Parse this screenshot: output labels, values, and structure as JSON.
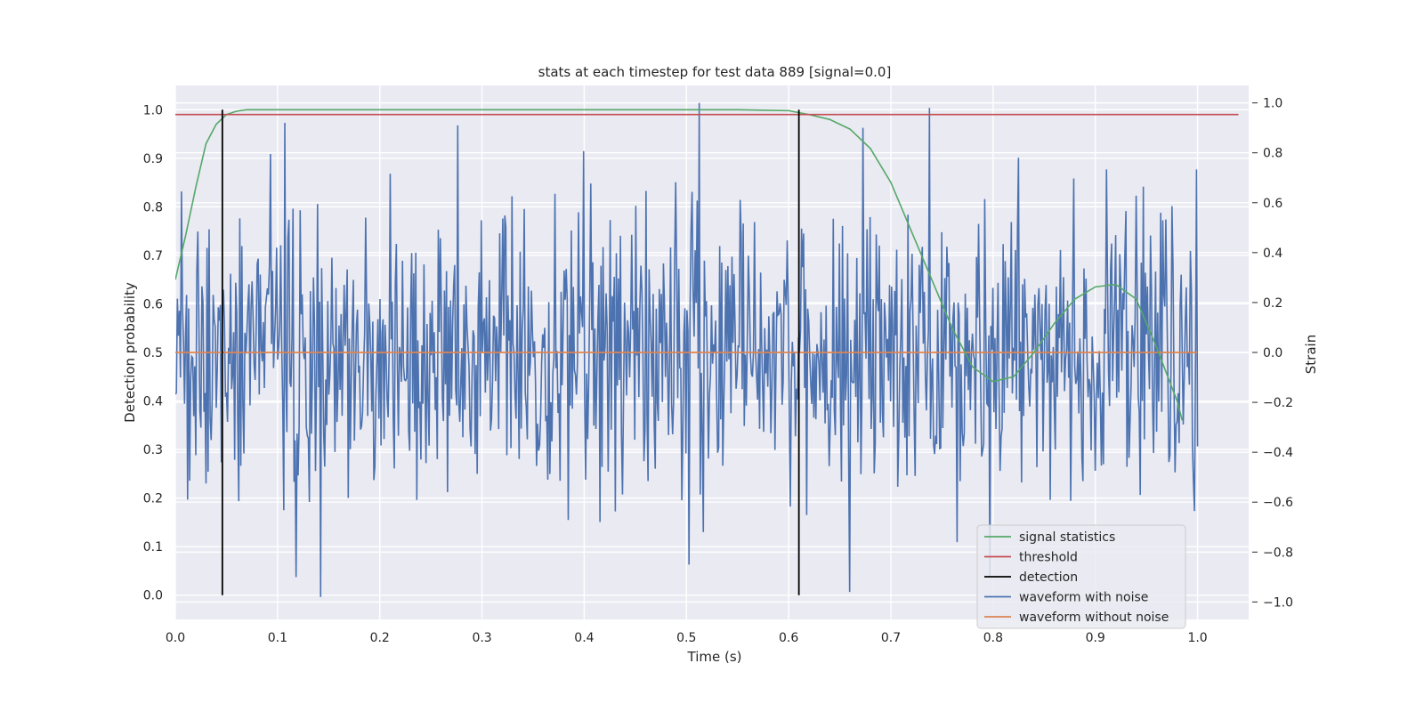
{
  "chart_data": {
    "type": "line",
    "title": "stats at each timestep for test data 889 [signal=0.0]",
    "xlabel": "Time (s)",
    "ylabel": "Detection probability",
    "y2label": "Strain",
    "xlim": [
      0.0,
      1.05
    ],
    "ylim": [
      -0.05,
      1.05
    ],
    "y2lim": [
      -1.07,
      1.07
    ],
    "grid": true,
    "legend_position": "lower-right",
    "x_ticks": [
      "0.0",
      "0.1",
      "0.2",
      "0.3",
      "0.4",
      "0.5",
      "0.6",
      "0.7",
      "0.8",
      "0.9",
      "1.0"
    ],
    "y_ticks": [
      "0.0",
      "0.1",
      "0.2",
      "0.3",
      "0.4",
      "0.5",
      "0.6",
      "0.7",
      "0.8",
      "0.9",
      "1.0"
    ],
    "y2_ticks": [
      "−1.0",
      "−0.8",
      "−0.6",
      "−0.4",
      "−0.2",
      "0.0",
      "0.2",
      "0.4",
      "0.6",
      "0.8",
      "1.0"
    ],
    "series": [
      {
        "name": "signal statistics",
        "axis": "left",
        "color": "#55a868",
        "x": [
          0.0,
          0.01,
          0.02,
          0.03,
          0.04,
          0.05,
          0.06,
          0.07,
          0.1,
          0.2,
          0.3,
          0.4,
          0.5,
          0.55,
          0.6,
          0.62,
          0.64,
          0.66,
          0.68,
          0.7,
          0.72,
          0.74,
          0.76,
          0.78,
          0.8,
          0.82,
          0.84,
          0.86,
          0.88,
          0.9,
          0.92,
          0.94,
          0.96,
          0.98,
          0.985
        ],
        "y": [
          0.65,
          0.74,
          0.84,
          0.93,
          0.97,
          0.99,
          0.997,
          1.0,
          1.0,
          1.0,
          1.0,
          1.0,
          1.0,
          1.0,
          0.998,
          0.99,
          0.98,
          0.96,
          0.92,
          0.85,
          0.75,
          0.65,
          0.55,
          0.47,
          0.44,
          0.45,
          0.5,
          0.56,
          0.61,
          0.635,
          0.64,
          0.61,
          0.51,
          0.4,
          0.36
        ]
      },
      {
        "name": "threshold",
        "axis": "left",
        "color": "#c44e52",
        "x": [
          0.0,
          1.04
        ],
        "y": [
          0.99,
          0.99
        ]
      },
      {
        "name": "detection",
        "axis": "left",
        "color": "#000000",
        "type": "vlines",
        "x": [
          0.046,
          0.61
        ],
        "y_range": [
          0.0,
          1.0
        ]
      },
      {
        "name": "waveform with noise",
        "axis": "right",
        "color": "#4c72b0",
        "x_range": [
          0.0,
          1.0
        ],
        "points": 1000,
        "y_std": 0.28,
        "seed": 889,
        "notable_peaks": [
          {
            "x": 0.012,
            "y": -0.59
          },
          {
            "x": 0.107,
            "y": 0.92
          },
          {
            "x": 0.142,
            "y": -0.98
          },
          {
            "x": 0.276,
            "y": 0.91
          },
          {
            "x": 0.503,
            "y": -0.85
          },
          {
            "x": 0.513,
            "y": 1.0
          },
          {
            "x": 0.66,
            "y": -0.96
          },
          {
            "x": 0.738,
            "y": 0.98
          },
          {
            "x": 0.765,
            "y": -0.76
          }
        ]
      },
      {
        "name": "waveform without noise",
        "axis": "right",
        "color": "#dd8452",
        "x": [
          0.0,
          1.0
        ],
        "y": [
          0.0,
          0.0
        ]
      }
    ]
  }
}
